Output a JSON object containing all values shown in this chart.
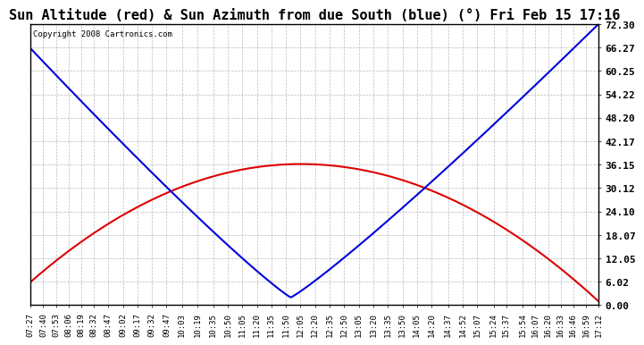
{
  "title": "Sun Altitude (red) & Sun Azimuth from due South (blue) (°) Fri Feb 15 17:16",
  "copyright": "Copyright 2008 Cartronics.com",
  "yticks": [
    0.0,
    6.02,
    12.05,
    18.07,
    24.1,
    30.12,
    36.15,
    42.17,
    48.2,
    54.22,
    60.25,
    66.27,
    72.3
  ],
  "ymin": 0.0,
  "ymax": 72.3,
  "time_start": "07:27",
  "time_end": "17:12",
  "bg_color": "#ffffff",
  "plot_bg": "#ffffff",
  "grid_color": "#bbbbbb",
  "red_color": "#dd0000",
  "blue_color": "#0000dd",
  "title_fontsize": 11,
  "tick_fontsize": 6.5,
  "ytick_fontsize": 8,
  "xtick_labels": [
    "07:27",
    "07:40",
    "07:53",
    "08:06",
    "08:19",
    "08:32",
    "08:47",
    "09:02",
    "09:17",
    "09:32",
    "09:47",
    "10:03",
    "10:19",
    "10:35",
    "10:50",
    "11:05",
    "11:20",
    "11:35",
    "11:50",
    "12:05",
    "12:20",
    "12:35",
    "12:50",
    "13:05",
    "13:20",
    "13:35",
    "13:50",
    "14:05",
    "14:20",
    "14:37",
    "14:52",
    "15:07",
    "15:24",
    "15:37",
    "15:54",
    "16:07",
    "16:20",
    "16:33",
    "16:46",
    "16:59",
    "17:12"
  ]
}
